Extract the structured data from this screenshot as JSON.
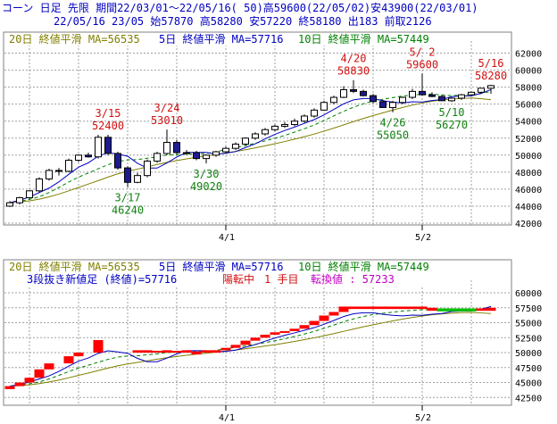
{
  "header": {
    "line1": "コーン 日足 先限 期間22/03/01～22/05/16( 50)高59600(22/05/02)安43900(22/03/01)",
    "line2": "22/05/16 23/05 始57870 高58280 安57220 終58180 出183 前取2126"
  },
  "legend": {
    "ma20": "20日 終値平滑 MA=56535",
    "ma5": "5日 終値平滑 MA=57716",
    "ma10": "10日 終値平滑 MA=57449"
  },
  "lower_info": {
    "kagi": "3段抜き新値足 (終値)=57716",
    "state": "陽転中",
    "count": "1 手目",
    "switch": "転換値 : 57233"
  },
  "colors": {
    "candle_up": "#ffffff",
    "candle_down": "#1c1c90",
    "ma5": "#0000c0",
    "ma10": "#008000",
    "ma20": "#808000",
    "brick_up": "#ff0000",
    "brick_down": "#00c000",
    "grid": "#a0a0a0"
  },
  "chart_data": [
    {
      "type": "candlestick",
      "x": [
        "03/01",
        "03/02",
        "03/03",
        "03/04",
        "03/07",
        "03/08",
        "03/09",
        "03/10",
        "03/11",
        "03/14",
        "03/15",
        "03/16",
        "03/17",
        "03/18",
        "03/22",
        "03/23",
        "03/24",
        "03/25",
        "03/28",
        "03/29",
        "03/30",
        "03/31",
        "04/01",
        "04/04",
        "04/05",
        "04/06",
        "04/07",
        "04/08",
        "04/11",
        "04/12",
        "04/13",
        "04/14",
        "04/15",
        "04/18",
        "04/19",
        "04/20",
        "04/21",
        "04/22",
        "04/25",
        "04/26",
        "04/27",
        "04/28",
        "05/02",
        "05/06",
        "05/09",
        "05/10",
        "05/11",
        "05/12",
        "05/13",
        "05/16"
      ],
      "x_tick_labels": [
        "4/1",
        "5/2"
      ],
      "x_tick_index": [
        22,
        42
      ],
      "open": [
        44000,
        44400,
        45000,
        45800,
        47200,
        48200,
        48100,
        49400,
        50000,
        49800,
        52100,
        50200,
        48500,
        46800,
        47600,
        49300,
        50200,
        51500,
        50300,
        50300,
        49600,
        50000,
        50400,
        50800,
        51300,
        52000,
        52500,
        53000,
        53400,
        53600,
        54000,
        54600,
        55300,
        56200,
        56800,
        57700,
        57500,
        57000,
        56300,
        55600,
        56200,
        56800,
        57500,
        57100,
        56900,
        56400,
        56700,
        57100,
        57400,
        57870
      ],
      "high": [
        44600,
        45100,
        45900,
        47400,
        48400,
        48500,
        49600,
        50100,
        50300,
        52400,
        52400,
        50400,
        48700,
        47900,
        49500,
        50400,
        53010,
        51800,
        50600,
        50500,
        50100,
        50500,
        51000,
        51500,
        52100,
        52700,
        53200,
        53600,
        53900,
        54300,
        54800,
        55500,
        56400,
        57000,
        58100,
        58830,
        57700,
        57200,
        56500,
        56400,
        56900,
        57800,
        59600,
        57400,
        57100,
        56800,
        57200,
        57500,
        57900,
        58280
      ],
      "low": [
        43900,
        44200,
        44800,
        45600,
        47000,
        47600,
        48000,
        49200,
        49700,
        49600,
        50000,
        48300,
        46240,
        46700,
        47400,
        49100,
        50000,
        50100,
        50000,
        49400,
        49020,
        49800,
        50200,
        50600,
        51100,
        51800,
        52300,
        52800,
        53200,
        53400,
        53800,
        54400,
        55200,
        56000,
        56700,
        57300,
        56900,
        56100,
        55600,
        55050,
        56000,
        56600,
        57000,
        56800,
        56600,
        56270,
        56500,
        56900,
        57200,
        57220
      ],
      "close": [
        44400,
        45000,
        45800,
        47200,
        48200,
        48100,
        49400,
        50000,
        49800,
        52100,
        50200,
        48500,
        46800,
        47600,
        49300,
        50200,
        51500,
        50300,
        50300,
        49600,
        50000,
        50400,
        50800,
        51300,
        52000,
        52500,
        53000,
        53400,
        53600,
        54000,
        54600,
        55300,
        56200,
        56800,
        57700,
        57500,
        57000,
        56300,
        55600,
        56200,
        56800,
        57500,
        57100,
        56900,
        56400,
        56700,
        57100,
        57400,
        57870,
        58180
      ],
      "ma5": [
        44400,
        44700,
        45070,
        45600,
        46120,
        46860,
        47740,
        48580,
        49100,
        49880,
        50300,
        50120,
        49880,
        49040,
        48480,
        48480,
        49080,
        49780,
        50320,
        50320,
        50320,
        50120,
        50220,
        50420,
        50900,
        51340,
        51920,
        52440,
        52900,
        53300,
        53740,
        54180,
        54740,
        55380,
        56040,
        56500,
        56660,
        56660,
        56400,
        56240,
        56140,
        56280,
        56240,
        56420,
        56540,
        56880,
        56960,
        56980,
        57260,
        57716
      ],
      "ma10": [
        44400,
        44550,
        44800,
        45100,
        45600,
        46200,
        46840,
        47420,
        47900,
        48400,
        48880,
        49250,
        49440,
        49480,
        49640,
        49800,
        50020,
        50060,
        50140,
        50160,
        50220,
        50360,
        50700,
        50870,
        51140,
        51390,
        51680,
        51990,
        52320,
        52710,
        53110,
        53540,
        54080,
        54620,
        55160,
        55640,
        56040,
        56380,
        56580,
        56770,
        56960,
        57060,
        57180,
        57180,
        57080,
        57000,
        57060,
        57160,
        57330,
        57449
      ],
      "ma20": [
        44400,
        44480,
        44620,
        44820,
        45100,
        45420,
        45800,
        46200,
        46600,
        47000,
        47420,
        47800,
        48100,
        48360,
        48620,
        48900,
        49150,
        49360,
        49560,
        49740,
        49900,
        50080,
        50260,
        50440,
        50640,
        50860,
        51100,
        51340,
        51600,
        51880,
        52170,
        52480,
        52820,
        53180,
        53560,
        53940,
        54310,
        54650,
        54980,
        55300,
        55610,
        55880,
        56130,
        56340,
        56490,
        56590,
        56680,
        56720,
        56640,
        56535
      ],
      "ylim": [
        42000,
        63000
      ],
      "yticks": [
        42000,
        44000,
        46000,
        48000,
        50000,
        52000,
        54000,
        56000,
        58000,
        60000,
        62000
      ],
      "annotations": [
        {
          "index": 10,
          "date": "3/15",
          "value": "52400",
          "color": "red",
          "pos": "above"
        },
        {
          "index": 16,
          "date": "3/24",
          "value": "53010",
          "color": "red",
          "pos": "above"
        },
        {
          "index": 35,
          "date": "4/20",
          "value": "58830",
          "color": "red",
          "pos": "above"
        },
        {
          "index": 42,
          "date": "5/ 2",
          "value": "59600",
          "color": "red",
          "pos": "above"
        },
        {
          "index": 49,
          "date": "5/16",
          "value": "58280",
          "color": "red",
          "pos": "above"
        },
        {
          "index": 12,
          "date": "3/17",
          "value": "46240",
          "color": "green",
          "pos": "below"
        },
        {
          "index": 20,
          "date": "3/30",
          "value": "49020",
          "color": "green",
          "pos": "below"
        },
        {
          "index": 39,
          "date": "4/26",
          "value": "55050",
          "color": "green",
          "pos": "below"
        },
        {
          "index": 45,
          "date": "5/10",
          "value": "56270",
          "color": "green",
          "pos": "below"
        }
      ]
    },
    {
      "type": "three-line-break",
      "x_tick_labels": [
        "4/1",
        "5/2"
      ],
      "x_tick_index": [
        22,
        42
      ],
      "ylim": [
        41500,
        61500
      ],
      "yticks": [
        42500,
        45000,
        47500,
        50000,
        52500,
        55000,
        57500,
        60000
      ],
      "bricks": [
        {
          "i": 0,
          "lo": 43900,
          "hi": 44400,
          "dir": "up"
        },
        {
          "i": 1,
          "lo": 44400,
          "hi": 45000,
          "dir": "up"
        },
        {
          "i": 2,
          "lo": 45000,
          "hi": 45800,
          "dir": "up"
        },
        {
          "i": 3,
          "lo": 45800,
          "hi": 47200,
          "dir": "up"
        },
        {
          "i": 4,
          "lo": 47200,
          "hi": 48200,
          "dir": "up"
        },
        {
          "i": 6,
          "lo": 48200,
          "hi": 49400,
          "dir": "up"
        },
        {
          "i": 7,
          "lo": 49400,
          "hi": 50000,
          "dir": "up"
        },
        {
          "i": 9,
          "lo": 50000,
          "hi": 52100,
          "dir": "up"
        },
        {
          "i": 13,
          "lo": 50000,
          "hi": 50400,
          "dir": "up"
        },
        {
          "i": 14,
          "lo": 50000,
          "hi": 50400,
          "dir": "up"
        },
        {
          "i": 15,
          "lo": 50000,
          "hi": 50300,
          "dir": "up"
        },
        {
          "i": 16,
          "lo": 50000,
          "hi": 50400,
          "dir": "up"
        },
        {
          "i": 17,
          "lo": 50000,
          "hi": 50300,
          "dir": "up"
        },
        {
          "i": 18,
          "lo": 50000,
          "hi": 50400,
          "dir": "up"
        },
        {
          "i": 19,
          "lo": 49700,
          "hi": 50200,
          "dir": "up"
        },
        {
          "i": 20,
          "lo": 50000,
          "hi": 50400,
          "dir": "up"
        },
        {
          "i": 21,
          "lo": 50000,
          "hi": 50400,
          "dir": "up"
        },
        {
          "i": 22,
          "lo": 50400,
          "hi": 50800,
          "dir": "up"
        },
        {
          "i": 23,
          "lo": 50800,
          "hi": 51300,
          "dir": "up"
        },
        {
          "i": 24,
          "lo": 51300,
          "hi": 52000,
          "dir": "up"
        },
        {
          "i": 25,
          "lo": 52000,
          "hi": 52500,
          "dir": "up"
        },
        {
          "i": 26,
          "lo": 52500,
          "hi": 53000,
          "dir": "up"
        },
        {
          "i": 27,
          "lo": 53000,
          "hi": 53400,
          "dir": "up"
        },
        {
          "i": 28,
          "lo": 53400,
          "hi": 53600,
          "dir": "up"
        },
        {
          "i": 29,
          "lo": 53600,
          "hi": 54000,
          "dir": "up"
        },
        {
          "i": 30,
          "lo": 54000,
          "hi": 54600,
          "dir": "up"
        },
        {
          "i": 31,
          "lo": 54600,
          "hi": 55300,
          "dir": "up"
        },
        {
          "i": 32,
          "lo": 55300,
          "hi": 56200,
          "dir": "up"
        },
        {
          "i": 33,
          "lo": 56200,
          "hi": 56800,
          "dir": "up"
        },
        {
          "i": 34,
          "lo": 56800,
          "hi": 57700,
          "dir": "up"
        },
        {
          "i": 35,
          "lo": 57300,
          "hi": 57700,
          "dir": "up"
        },
        {
          "i": 36,
          "lo": 57300,
          "hi": 57700,
          "dir": "up"
        },
        {
          "i": 37,
          "lo": 57300,
          "hi": 57700,
          "dir": "up"
        },
        {
          "i": 38,
          "lo": 57300,
          "hi": 57700,
          "dir": "up"
        },
        {
          "i": 39,
          "lo": 57300,
          "hi": 57700,
          "dir": "up"
        },
        {
          "i": 40,
          "lo": 57300,
          "hi": 57700,
          "dir": "up"
        },
        {
          "i": 41,
          "lo": 57300,
          "hi": 57700,
          "dir": "up"
        },
        {
          "i": 42,
          "lo": 57300,
          "hi": 57700,
          "dir": "up"
        },
        {
          "i": 43,
          "lo": 57000,
          "hi": 57500,
          "dir": "up"
        },
        {
          "i": 44,
          "lo": 56900,
          "hi": 57400,
          "dir": "down"
        },
        {
          "i": 45,
          "lo": 56900,
          "hi": 57400,
          "dir": "down"
        },
        {
          "i": 46,
          "lo": 56900,
          "hi": 57400,
          "dir": "down"
        },
        {
          "i": 47,
          "lo": 56900,
          "hi": 57400,
          "dir": "down"
        },
        {
          "i": 48,
          "lo": 57000,
          "hi": 57400,
          "dir": "up"
        },
        {
          "i": 49,
          "lo": 57000,
          "hi": 57500,
          "dir": "up"
        }
      ]
    }
  ]
}
